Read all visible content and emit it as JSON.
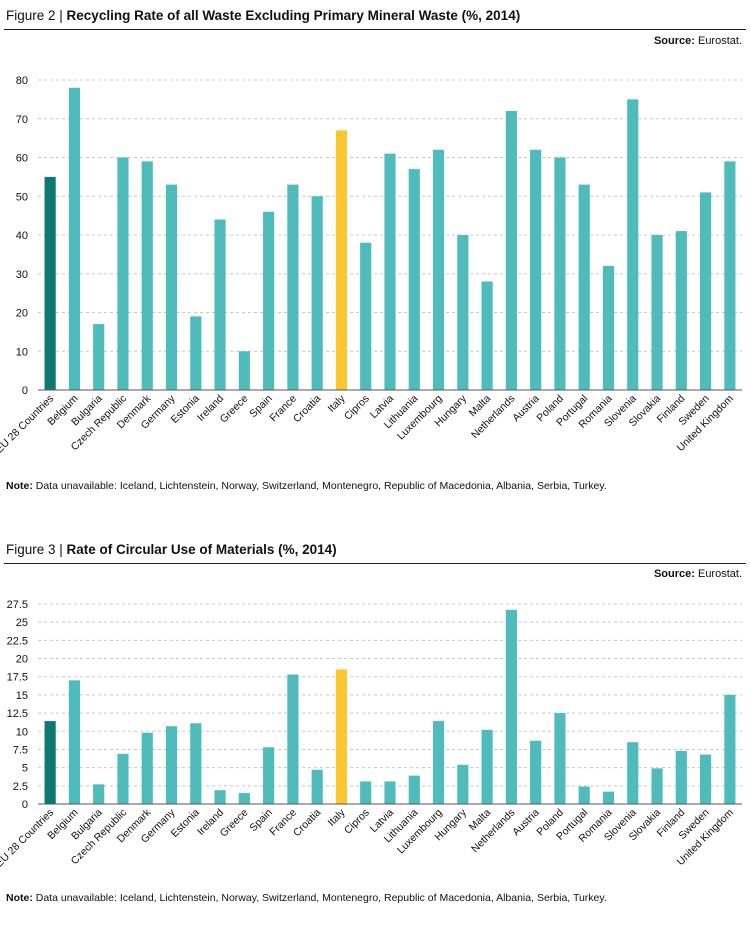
{
  "colors": {
    "eu": "#0e7a6f",
    "italy": "#fcc62c",
    "default": "#4fbcbb"
  },
  "figures": [
    {
      "title_num": "Figure 2 | ",
      "title_text": "Recycling Rate of all Waste Excluding Primary Mineral Waste (%, 2014)",
      "source_label": "Source:",
      "source_value": " Eurostat.",
      "note_label": "Note:",
      "note_text": " Data unavailable: Iceland, Lichtenstein, Norway, Switzerland, Montenegro, Republic of Macedonia, Albania, Serbia, Turkey."
    },
    {
      "title_num": "Figure 3 | ",
      "title_text": "Rate of Circular Use of Materials (%, 2014)",
      "source_label": "Source:",
      "source_value": " Eurostat.",
      "note_label": "Note:",
      "note_text": " Data unavailable: Iceland, Lichtenstein, Norway, Switzerland, Montenegro, Republic of Macedonia, Albania, Serbia, Turkey."
    }
  ],
  "chart_data": [
    {
      "type": "bar",
      "title": "Recycling Rate of all Waste Excluding Primary Mineral Waste (%, 2014)",
      "categories": [
        "EU 28 Countries",
        "Belgium",
        "Bulgaria",
        "Czech Republic",
        "Denmark",
        "Germany",
        "Estonia",
        "Ireland",
        "Greece",
        "Spain",
        "France",
        "Croatia",
        "Italy",
        "Cipros",
        "Latvia",
        "Lithuania",
        "Luxembourg",
        "Hungary",
        "Malta",
        "Netherlands",
        "Austria",
        "Poland",
        "Portugal",
        "Romania",
        "Slovenia",
        "Slovakia",
        "Finland",
        "Sweden",
        "United Kingdom"
      ],
      "values": [
        55,
        78,
        17,
        60,
        59,
        53,
        19,
        44,
        10,
        46,
        53,
        50,
        67,
        38,
        61,
        57,
        62,
        40,
        28,
        72,
        62,
        60,
        53,
        32,
        75,
        40,
        41,
        51,
        59
      ],
      "highlight": {
        "EU 28 Countries": "eu",
        "Italy": "italy"
      },
      "yticks": [
        0,
        10,
        20,
        30,
        40,
        50,
        60,
        70,
        80
      ],
      "ylim": [
        0,
        80
      ],
      "grid": true,
      "legend": "none"
    },
    {
      "type": "bar",
      "title": "Rate of Circular Use of Materials (%, 2014)",
      "categories": [
        "EU 28 Countries",
        "Belgium",
        "Bulgaria",
        "Czech Republic",
        "Denmark",
        "Germany",
        "Estonia",
        "Ireland",
        "Greece",
        "Spain",
        "France",
        "Croatia",
        "Italy",
        "Cipros",
        "Latvia",
        "Lithuania",
        "Luxembourg",
        "Hungary",
        "Malta",
        "Netherlands",
        "Austria",
        "Poland",
        "Portugal",
        "Romania",
        "Slovenia",
        "Slovakia",
        "Finland",
        "Sweden",
        "United Kingdom"
      ],
      "values": [
        11.4,
        17,
        2.7,
        6.9,
        9.8,
        10.7,
        11.1,
        1.9,
        1.5,
        7.8,
        17.8,
        4.7,
        18.5,
        3.1,
        3.1,
        3.9,
        11.4,
        5.4,
        10.2,
        26.7,
        8.7,
        12.5,
        2.4,
        1.7,
        8.5,
        4.9,
        7.3,
        6.8,
        15
      ],
      "highlight": {
        "EU 28 Countries": "eu",
        "Italy": "italy"
      },
      "yticks": [
        "0",
        "2.5",
        "5",
        "7.5",
        "10",
        "12.5",
        "15",
        "17.5",
        "20",
        "22.5",
        "25",
        "27.5"
      ],
      "ylim": [
        0,
        27.5
      ],
      "grid": true,
      "legend": "none"
    }
  ]
}
